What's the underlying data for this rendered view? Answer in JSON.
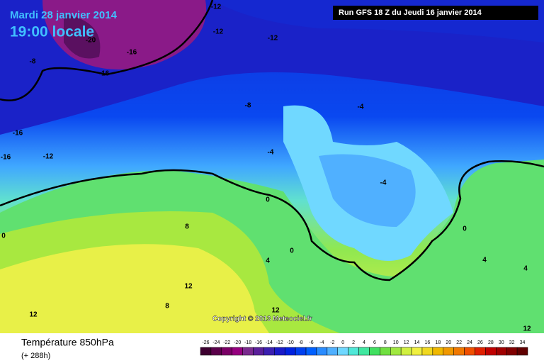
{
  "header": {
    "date": "Mardi 28 janvier 2014",
    "time": "19:00 locale",
    "run": "Run GFS 18 Z du Jeudi 16 janvier 2014"
  },
  "map": {
    "contour_labels": [
      -12,
      -12,
      -12,
      -20,
      -16,
      -16,
      -8,
      -16,
      -16,
      -12,
      -8,
      -4,
      -4,
      -4,
      0,
      8,
      0,
      4,
      0,
      0,
      4,
      4,
      12,
      8,
      12,
      12,
      12
    ],
    "copyright": "Copyright © 2013 Meteociel.fr"
  },
  "footer": {
    "title": "Température 850hPa",
    "subtitle": "(+ 288h)"
  },
  "colorbar": {
    "values": [
      -26,
      -24,
      -22,
      -20,
      -18,
      -16,
      -14,
      -12,
      -10,
      -8,
      -6,
      -4,
      -2,
      0,
      2,
      4,
      6,
      8,
      10,
      12,
      14,
      16,
      18,
      20,
      22,
      24,
      26,
      28,
      30,
      32,
      34
    ],
    "colors": [
      "#3d0030",
      "#5a004a",
      "#7a0066",
      "#96007f",
      "#7a2a8e",
      "#5a1f9a",
      "#3b1fb0",
      "#1a1ac8",
      "#0022e0",
      "#0040f0",
      "#0060ff",
      "#2a8cff",
      "#50b0ff",
      "#70d8ff",
      "#50e8d8",
      "#40e8a0",
      "#40e060",
      "#70e040",
      "#a0e840",
      "#d0f040",
      "#f0f040",
      "#f0d820",
      "#f0b800",
      "#f09800",
      "#f07800",
      "#f05000",
      "#e02000",
      "#c00000",
      "#a00000",
      "#800000",
      "#600000"
    ]
  }
}
